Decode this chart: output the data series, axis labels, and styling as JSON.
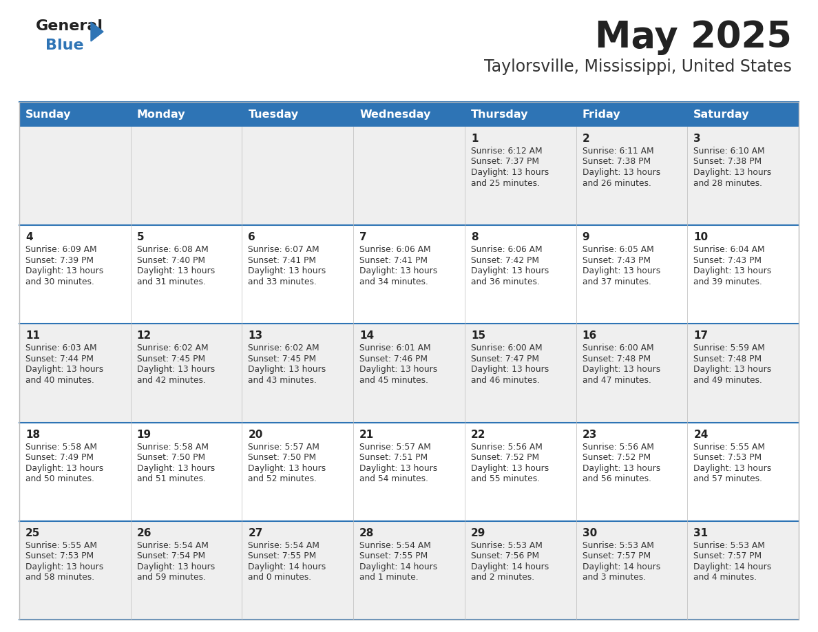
{
  "title": "May 2025",
  "subtitle": "Taylorsville, Mississippi, United States",
  "header_bg": "#2E74B5",
  "header_text_color": "#FFFFFF",
  "row_bg_even": "#EFEFEF",
  "row_bg_odd": "#FFFFFF",
  "day_headers": [
    "Sunday",
    "Monday",
    "Tuesday",
    "Wednesday",
    "Thursday",
    "Friday",
    "Saturday"
  ],
  "days": [
    {
      "day": 1,
      "col": 4,
      "row": 0,
      "sunrise": "6:12 AM",
      "sunset": "7:37 PM",
      "daylight_line1": "Daylight: 13 hours",
      "daylight_line2": "and 25 minutes."
    },
    {
      "day": 2,
      "col": 5,
      "row": 0,
      "sunrise": "6:11 AM",
      "sunset": "7:38 PM",
      "daylight_line1": "Daylight: 13 hours",
      "daylight_line2": "and 26 minutes."
    },
    {
      "day": 3,
      "col": 6,
      "row": 0,
      "sunrise": "6:10 AM",
      "sunset": "7:38 PM",
      "daylight_line1": "Daylight: 13 hours",
      "daylight_line2": "and 28 minutes."
    },
    {
      "day": 4,
      "col": 0,
      "row": 1,
      "sunrise": "6:09 AM",
      "sunset": "7:39 PM",
      "daylight_line1": "Daylight: 13 hours",
      "daylight_line2": "and 30 minutes."
    },
    {
      "day": 5,
      "col": 1,
      "row": 1,
      "sunrise": "6:08 AM",
      "sunset": "7:40 PM",
      "daylight_line1": "Daylight: 13 hours",
      "daylight_line2": "and 31 minutes."
    },
    {
      "day": 6,
      "col": 2,
      "row": 1,
      "sunrise": "6:07 AM",
      "sunset": "7:41 PM",
      "daylight_line1": "Daylight: 13 hours",
      "daylight_line2": "and 33 minutes."
    },
    {
      "day": 7,
      "col": 3,
      "row": 1,
      "sunrise": "6:06 AM",
      "sunset": "7:41 PM",
      "daylight_line1": "Daylight: 13 hours",
      "daylight_line2": "and 34 minutes."
    },
    {
      "day": 8,
      "col": 4,
      "row": 1,
      "sunrise": "6:06 AM",
      "sunset": "7:42 PM",
      "daylight_line1": "Daylight: 13 hours",
      "daylight_line2": "and 36 minutes."
    },
    {
      "day": 9,
      "col": 5,
      "row": 1,
      "sunrise": "6:05 AM",
      "sunset": "7:43 PM",
      "daylight_line1": "Daylight: 13 hours",
      "daylight_line2": "and 37 minutes."
    },
    {
      "day": 10,
      "col": 6,
      "row": 1,
      "sunrise": "6:04 AM",
      "sunset": "7:43 PM",
      "daylight_line1": "Daylight: 13 hours",
      "daylight_line2": "and 39 minutes."
    },
    {
      "day": 11,
      "col": 0,
      "row": 2,
      "sunrise": "6:03 AM",
      "sunset": "7:44 PM",
      "daylight_line1": "Daylight: 13 hours",
      "daylight_line2": "and 40 minutes."
    },
    {
      "day": 12,
      "col": 1,
      "row": 2,
      "sunrise": "6:02 AM",
      "sunset": "7:45 PM",
      "daylight_line1": "Daylight: 13 hours",
      "daylight_line2": "and 42 minutes."
    },
    {
      "day": 13,
      "col": 2,
      "row": 2,
      "sunrise": "6:02 AM",
      "sunset": "7:45 PM",
      "daylight_line1": "Daylight: 13 hours",
      "daylight_line2": "and 43 minutes."
    },
    {
      "day": 14,
      "col": 3,
      "row": 2,
      "sunrise": "6:01 AM",
      "sunset": "7:46 PM",
      "daylight_line1": "Daylight: 13 hours",
      "daylight_line2": "and 45 minutes."
    },
    {
      "day": 15,
      "col": 4,
      "row": 2,
      "sunrise": "6:00 AM",
      "sunset": "7:47 PM",
      "daylight_line1": "Daylight: 13 hours",
      "daylight_line2": "and 46 minutes."
    },
    {
      "day": 16,
      "col": 5,
      "row": 2,
      "sunrise": "6:00 AM",
      "sunset": "7:48 PM",
      "daylight_line1": "Daylight: 13 hours",
      "daylight_line2": "and 47 minutes."
    },
    {
      "day": 17,
      "col": 6,
      "row": 2,
      "sunrise": "5:59 AM",
      "sunset": "7:48 PM",
      "daylight_line1": "Daylight: 13 hours",
      "daylight_line2": "and 49 minutes."
    },
    {
      "day": 18,
      "col": 0,
      "row": 3,
      "sunrise": "5:58 AM",
      "sunset": "7:49 PM",
      "daylight_line1": "Daylight: 13 hours",
      "daylight_line2": "and 50 minutes."
    },
    {
      "day": 19,
      "col": 1,
      "row": 3,
      "sunrise": "5:58 AM",
      "sunset": "7:50 PM",
      "daylight_line1": "Daylight: 13 hours",
      "daylight_line2": "and 51 minutes."
    },
    {
      "day": 20,
      "col": 2,
      "row": 3,
      "sunrise": "5:57 AM",
      "sunset": "7:50 PM",
      "daylight_line1": "Daylight: 13 hours",
      "daylight_line2": "and 52 minutes."
    },
    {
      "day": 21,
      "col": 3,
      "row": 3,
      "sunrise": "5:57 AM",
      "sunset": "7:51 PM",
      "daylight_line1": "Daylight: 13 hours",
      "daylight_line2": "and 54 minutes."
    },
    {
      "day": 22,
      "col": 4,
      "row": 3,
      "sunrise": "5:56 AM",
      "sunset": "7:52 PM",
      "daylight_line1": "Daylight: 13 hours",
      "daylight_line2": "and 55 minutes."
    },
    {
      "day": 23,
      "col": 5,
      "row": 3,
      "sunrise": "5:56 AM",
      "sunset": "7:52 PM",
      "daylight_line1": "Daylight: 13 hours",
      "daylight_line2": "and 56 minutes."
    },
    {
      "day": 24,
      "col": 6,
      "row": 3,
      "sunrise": "5:55 AM",
      "sunset": "7:53 PM",
      "daylight_line1": "Daylight: 13 hours",
      "daylight_line2": "and 57 minutes."
    },
    {
      "day": 25,
      "col": 0,
      "row": 4,
      "sunrise": "5:55 AM",
      "sunset": "7:53 PM",
      "daylight_line1": "Daylight: 13 hours",
      "daylight_line2": "and 58 minutes."
    },
    {
      "day": 26,
      "col": 1,
      "row": 4,
      "sunrise": "5:54 AM",
      "sunset": "7:54 PM",
      "daylight_line1": "Daylight: 13 hours",
      "daylight_line2": "and 59 minutes."
    },
    {
      "day": 27,
      "col": 2,
      "row": 4,
      "sunrise": "5:54 AM",
      "sunset": "7:55 PM",
      "daylight_line1": "Daylight: 14 hours",
      "daylight_line2": "and 0 minutes."
    },
    {
      "day": 28,
      "col": 3,
      "row": 4,
      "sunrise": "5:54 AM",
      "sunset": "7:55 PM",
      "daylight_line1": "Daylight: 14 hours",
      "daylight_line2": "and 1 minute."
    },
    {
      "day": 29,
      "col": 4,
      "row": 4,
      "sunrise": "5:53 AM",
      "sunset": "7:56 PM",
      "daylight_line1": "Daylight: 14 hours",
      "daylight_line2": "and 2 minutes."
    },
    {
      "day": 30,
      "col": 5,
      "row": 4,
      "sunrise": "5:53 AM",
      "sunset": "7:57 PM",
      "daylight_line1": "Daylight: 14 hours",
      "daylight_line2": "and 3 minutes."
    },
    {
      "day": 31,
      "col": 6,
      "row": 4,
      "sunrise": "5:53 AM",
      "sunset": "7:57 PM",
      "daylight_line1": "Daylight: 14 hours",
      "daylight_line2": "and 4 minutes."
    }
  ],
  "num_rows": 5,
  "num_cols": 7
}
